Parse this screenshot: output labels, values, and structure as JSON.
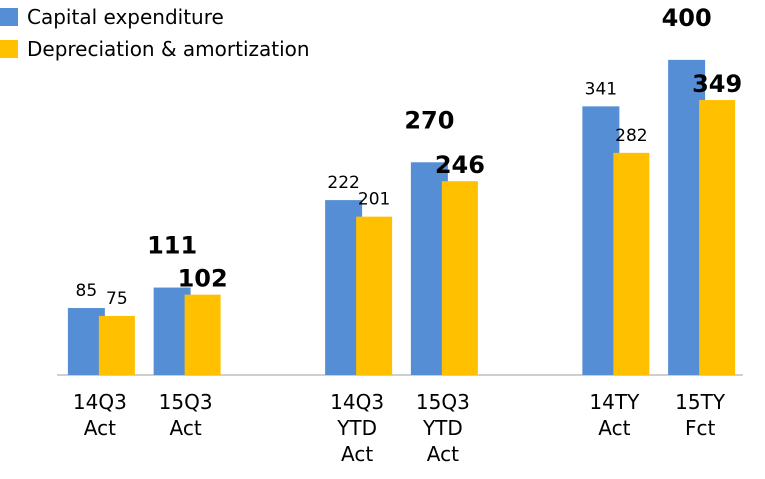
{
  "chart_data": {
    "type": "bar",
    "categories": [
      "14Q3\nAct",
      "15Q3\nAct",
      null,
      "14Q3\nYTD\nAct",
      "15Q3\nYTD\nAct",
      null,
      "14TY\nAct",
      "15TY\nFct"
    ],
    "series": [
      {
        "name": "Capital expenditure",
        "color": "#558ED5",
        "values": [
          85,
          111,
          null,
          222,
          270,
          null,
          341,
          400
        ]
      },
      {
        "name": "Depreciation & amortization",
        "color": "#FFC000",
        "values": [
          75,
          102,
          null,
          201,
          246,
          null,
          282,
          349
        ]
      }
    ],
    "ylim": [
      0,
      476
    ],
    "legend": "upper left"
  }
}
